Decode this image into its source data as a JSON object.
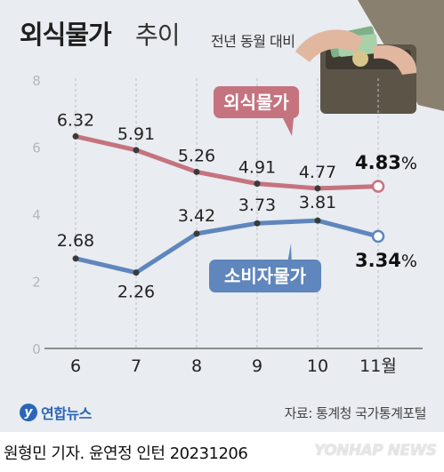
{
  "header": {
    "title": "외식물가",
    "title_suffix": "추이",
    "note": "전년 동월 대비"
  },
  "footer": {
    "logo_text": "연합뉴스",
    "source": "자료: 통계청 국가통계포털",
    "credit": "원형민 기자. 윤연정 인턴  20231206",
    "watermark": "YONHAP NEWS"
  },
  "chart_data": {
    "type": "line",
    "title": "외식물가 추이",
    "subtitle": "전년 동월 대비",
    "xlabel": "",
    "ylabel": "",
    "categories": [
      "6",
      "7",
      "8",
      "9",
      "10",
      "11월"
    ],
    "ylim": [
      0,
      8
    ],
    "yticks": [
      0,
      2,
      4,
      6,
      8
    ],
    "grid": "vertical dashed",
    "series": [
      {
        "name": "외식물가",
        "values": [
          6.32,
          5.91,
          5.26,
          4.91,
          4.77,
          4.83
        ],
        "labels": [
          "6.32",
          "5.91",
          "5.26",
          "4.91",
          "4.77",
          "4.83"
        ],
        "last_suffix": "%",
        "color": "#c5737f"
      },
      {
        "name": "소비자물가",
        "values": [
          2.68,
          2.26,
          3.42,
          3.73,
          3.81,
          3.34
        ],
        "labels": [
          "2.68",
          "2.26",
          "3.42",
          "3.73",
          "3.81",
          "3.34"
        ],
        "last_suffix": "%",
        "color": "#5f86bd"
      }
    ],
    "legend": "inline-labels"
  }
}
